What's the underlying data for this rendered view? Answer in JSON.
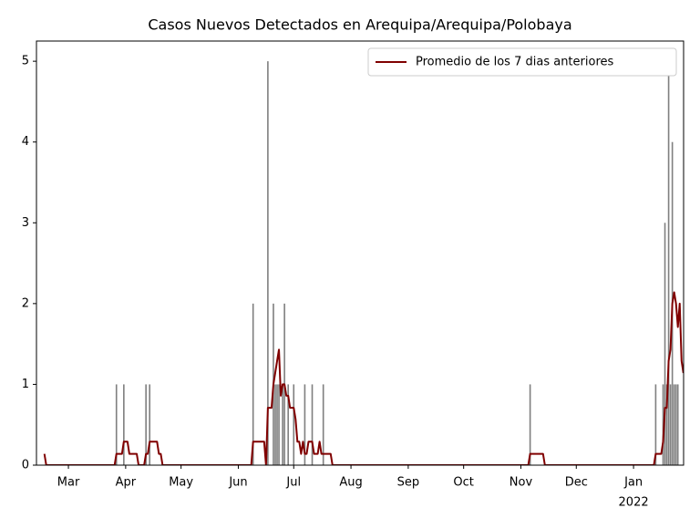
{
  "chart_data": {
    "type": "bar",
    "title": "Casos Nuevos Detectados en Arequipa/Arequipa/Polobaya",
    "bars": {
      "color": "#808080",
      "x": [
        44,
        48,
        60,
        62,
        118,
        126,
        129,
        130,
        131,
        132,
        134,
        135,
        137,
        140,
        146,
        150,
        156,
        268,
        336,
        340,
        341,
        342,
        343,
        344,
        345,
        346,
        347,
        348
      ],
      "values": [
        1,
        1,
        1,
        1,
        2,
        5,
        2,
        1,
        1,
        1,
        1,
        2,
        1,
        1,
        1,
        1,
        1,
        1,
        1,
        1,
        3,
        1,
        5,
        1,
        4,
        1,
        1,
        1
      ]
    },
    "series": [
      {
        "name": "Promedio de los 7 dias anteriores",
        "color": "#800000",
        "type": "line",
        "x": [
          5,
          6,
          43,
          44,
          47,
          48,
          50,
          51,
          55,
          56,
          59,
          60,
          61,
          62,
          66,
          67,
          68,
          69,
          117,
          118,
          124,
          125,
          126,
          128,
          129,
          131,
          132,
          133,
          134,
          135,
          136,
          137,
          138,
          140,
          141,
          142,
          143,
          144,
          145,
          146,
          147,
          148,
          150,
          151,
          153,
          154,
          155,
          160,
          161,
          267,
          268,
          275,
          276,
          335,
          336,
          339,
          340,
          341,
          342,
          343,
          344,
          345,
          346,
          347,
          348,
          349,
          350,
          351
        ],
        "values": [
          0.14,
          0,
          0,
          0.14,
          0.14,
          0.29,
          0.29,
          0.14,
          0.14,
          0,
          0,
          0.14,
          0.14,
          0.29,
          0.29,
          0.14,
          0.14,
          0,
          0,
          0.29,
          0.29,
          0,
          0.71,
          0.71,
          1,
          1.29,
          1.43,
          0.86,
          1,
          1,
          0.86,
          0.86,
          0.71,
          0.71,
          0.57,
          0.29,
          0.29,
          0.14,
          0.29,
          0.14,
          0.14,
          0.29,
          0.29,
          0.14,
          0.14,
          0.29,
          0.14,
          0.14,
          0,
          0,
          0.14,
          0.14,
          0,
          0,
          0.14,
          0.14,
          0.29,
          0.71,
          0.71,
          1.29,
          1.43,
          2,
          2.14,
          2,
          1.71,
          2,
          1.29,
          1.14
        ]
      }
    ],
    "xlim": [
      0.7,
      351.1
    ],
    "xticks": [
      {
        "value": 18,
        "label": "Mar"
      },
      {
        "value": 49,
        "label": "Apr"
      },
      {
        "value": 79,
        "label": "May"
      },
      {
        "value": 110,
        "label": "Jun"
      },
      {
        "value": 140,
        "label": "Jul"
      },
      {
        "value": 171,
        "label": "Aug"
      },
      {
        "value": 202,
        "label": "Sep"
      },
      {
        "value": 232,
        "label": "Oct"
      },
      {
        "value": 263,
        "label": "Nov"
      },
      {
        "value": 293,
        "label": "Dec"
      },
      {
        "value": 324,
        "label": "Jan"
      }
    ],
    "x_year_label": "2022",
    "ylim": [
      0,
      5.25
    ],
    "yticks": [
      0,
      1,
      2,
      3,
      4,
      5
    ],
    "legend": "upper right"
  }
}
